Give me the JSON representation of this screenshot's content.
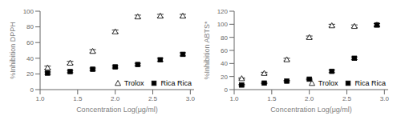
{
  "chart_data": [
    {
      "type": "scatter",
      "xlabel": "Concentration Log(μg/ml)",
      "ylabel": "%Inhibition DPPH",
      "x": [
        1.1,
        1.4,
        1.7,
        2.0,
        2.3,
        2.6,
        2.9
      ],
      "xlim": [
        1.0,
        3.05
      ],
      "ylim": [
        0,
        100
      ],
      "xticks": [
        {
          "value": 1.0,
          "label": "1.0"
        },
        1.5,
        {
          "value": 2.0,
          "label": "2.0"
        },
        2.5,
        {
          "value": 3.0,
          "label": "3.0"
        }
      ],
      "yticks": [
        0,
        20,
        40,
        60,
        80,
        100
      ],
      "legend": "lower right",
      "series": [
        {
          "name": "Trolox",
          "color": "black",
          "marker": "triangle-open",
          "values": [
            28,
            34,
            49,
            74,
            93,
            94,
            94
          ],
          "yerr": [
            2,
            2,
            2,
            2,
            2,
            2,
            2
          ]
        },
        {
          "name": "Rica Rica",
          "color": "black",
          "marker": "square",
          "values": [
            21,
            23,
            26,
            29,
            32,
            38,
            45
          ],
          "yerr": [
            1.5,
            1.5,
            1.5,
            1.5,
            1.5,
            2,
            2
          ]
        }
      ]
    },
    {
      "type": "scatter",
      "xlabel": "Concentration Log(μg/ml)",
      "ylabel": "%Inhibition ABTS*",
      "x": [
        1.1,
        1.4,
        1.7,
        2.0,
        2.3,
        2.6,
        2.9
      ],
      "xlim": [
        1.0,
        3.05
      ],
      "ylim": [
        0,
        120
      ],
      "xticks": [
        {
          "value": 1.0,
          "label": "1.0"
        },
        1.5,
        {
          "value": 2.0,
          "label": "2.0"
        },
        2.5,
        {
          "value": 3.0,
          "label": "3.0"
        }
      ],
      "yticks": [
        0,
        20,
        40,
        60,
        80,
        100,
        120
      ],
      "legend": "lower right",
      "series": [
        {
          "name": "Trolox",
          "color": "black",
          "marker": "triangle-open",
          "values": [
            17,
            25,
            46,
            80,
            98,
            97,
            99
          ],
          "yerr": [
            1,
            1.5,
            2,
            2,
            2,
            2,
            2
          ]
        },
        {
          "name": "Rica Rica",
          "color": "black",
          "marker": "square",
          "values": [
            7,
            10,
            13,
            16,
            28,
            48,
            99
          ],
          "yerr": [
            1,
            1,
            1,
            1,
            2,
            2,
            2
          ]
        }
      ]
    }
  ]
}
